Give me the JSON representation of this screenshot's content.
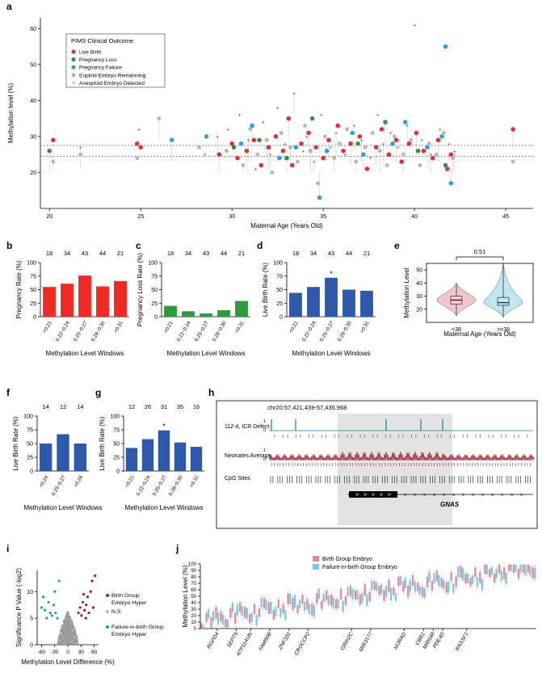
{
  "palette": {
    "red": "#e0303a",
    "green": "#3b8f3b",
    "blue": "#2f9fd8",
    "grey": "#b8b8b8",
    "dark": "#444444",
    "bar_red": "#ee2a24",
    "bar_green": "#2e9a3b",
    "bar_blue": "#2e58a8",
    "violin_red": "#f2c6cc",
    "violin_blue": "#bfe7f2",
    "volcano_red": "#a3143a",
    "volcano_teal": "#1aa0b8",
    "track_teal": "#1b7f90",
    "track_red": "#9a1b2e"
  },
  "chart_data": [
    {
      "panel": "a",
      "type": "scatter",
      "xlabel": "Maternal Age (Years Old)",
      "ylabel": "Methylation level (%)",
      "xlim": [
        19.5,
        46.5
      ],
      "ylim": [
        10,
        63
      ],
      "xticks": [
        20,
        25,
        30,
        35,
        40,
        45
      ],
      "yticks": [
        20,
        30,
        40,
        50,
        60
      ],
      "reference_lines": [
        24.5,
        27.5
      ],
      "legend": {
        "title": "PIMS Clinical Outcome",
        "items": [
          {
            "label": "Live Birth",
            "color": "#e0303a",
            "shape": "circle"
          },
          {
            "label": "Pregnancy Loss",
            "color": "#3b8f3b",
            "shape": "circle"
          },
          {
            "label": "Pregnancy Failure",
            "color": "#2f9fd8",
            "shape": "circle"
          },
          {
            "label": "Euploid Embryo Remainning",
            "color": "#b8b8b8",
            "shape": "circle"
          },
          {
            "label": "Aneuploid Embryo Detected",
            "color": "#b8b8b8",
            "shape": "plus"
          }
        ]
      },
      "series": [
        {
          "name": "Live Birth",
          "color": "#e0303a",
          "points": [
            [
              20.2,
              29
            ],
            [
              24.8,
              28
            ],
            [
              25,
              27
            ],
            [
              29.3,
              25
            ],
            [
              30,
              28
            ],
            [
              30.3,
              24
            ],
            [
              30.8,
              26
            ],
            [
              31.2,
              29
            ],
            [
              31.6,
              22
            ],
            [
              32,
              27
            ],
            [
              32.4,
              30
            ],
            [
              32.8,
              26
            ],
            [
              33.1,
              35
            ],
            [
              33.3,
              22
            ],
            [
              33.8,
              28
            ],
            [
              34.2,
              31
            ],
            [
              34.6,
              27
            ],
            [
              35,
              24
            ],
            [
              35.3,
              29
            ],
            [
              35.8,
              33
            ],
            [
              36.1,
              26
            ],
            [
              36.5,
              28
            ],
            [
              37,
              30
            ],
            [
              37.4,
              21
            ],
            [
              37.9,
              27
            ],
            [
              38.2,
              32
            ],
            [
              38.6,
              25
            ],
            [
              39,
              29
            ],
            [
              39.3,
              23
            ],
            [
              39.7,
              28
            ],
            [
              40.1,
              31
            ],
            [
              40.5,
              26
            ],
            [
              41,
              24
            ],
            [
              41.3,
              29
            ],
            [
              41.8,
              21
            ],
            [
              42,
              25
            ],
            [
              45.4,
              32
            ]
          ]
        },
        {
          "name": "Pregnancy Loss",
          "color": "#3b8f3b",
          "points": [
            [
              20,
              26
            ],
            [
              30.1,
              27
            ],
            [
              31.5,
              29
            ],
            [
              33,
              24
            ],
            [
              34.4,
              35
            ],
            [
              36.9,
              28
            ],
            [
              38.4,
              34
            ],
            [
              40.2,
              26
            ],
            [
              41.7,
              22
            ]
          ]
        },
        {
          "name": "Pregnancy Failure",
          "color": "#2f9fd8",
          "points": [
            [
              26.7,
              29
            ],
            [
              28.6,
              30
            ],
            [
              30.5,
              28
            ],
            [
              31.1,
              33
            ],
            [
              32.6,
              24
            ],
            [
              33.5,
              27
            ],
            [
              34.8,
              13
            ],
            [
              35.2,
              26
            ],
            [
              36.6,
              31
            ],
            [
              37.2,
              25
            ],
            [
              38.8,
              28
            ],
            [
              39.5,
              34
            ],
            [
              40.7,
              27
            ],
            [
              41.5,
              30
            ],
            [
              41.7,
              55
            ],
            [
              42,
              17
            ]
          ]
        },
        {
          "name": "Euploid Embryo Remainning",
          "color": "#b8b8b8",
          "points": [
            [
              20.2,
              23
            ],
            [
              21.7,
              25
            ],
            [
              24.8,
              24
            ],
            [
              26,
              35
            ],
            [
              28.2,
              27
            ],
            [
              29.7,
              26
            ],
            [
              30.6,
              22
            ],
            [
              31,
              32
            ],
            [
              31.4,
              25
            ],
            [
              31.9,
              29
            ],
            [
              32.2,
              20
            ],
            [
              32.7,
              31
            ],
            [
              33.2,
              27
            ],
            [
              33.6,
              23
            ],
            [
              34,
              33
            ],
            [
              34.3,
              26
            ],
            [
              34.7,
              17
            ],
            [
              35.1,
              30
            ],
            [
              35.6,
              24
            ],
            [
              35.9,
              28
            ],
            [
              36.3,
              32
            ],
            [
              36.8,
              23
            ],
            [
              37.3,
              27
            ],
            [
              37.7,
              31
            ],
            [
              38.1,
              26
            ],
            [
              38.5,
              22
            ],
            [
              38.9,
              30
            ],
            [
              39.4,
              25
            ],
            [
              39.8,
              29
            ],
            [
              40.3,
              22
            ],
            [
              40.8,
              28
            ],
            [
              41.2,
              25
            ],
            [
              41.6,
              31
            ],
            [
              42.1,
              24
            ],
            [
              45.4,
              23
            ]
          ]
        },
        {
          "name": "Aneuploid Embryo Detected",
          "color": "#444444",
          "points": [
            [
              21.7,
              27
            ],
            [
              24.9,
              32
            ],
            [
              28.5,
              25
            ],
            [
              29.2,
              30
            ],
            [
              29.8,
              32
            ],
            [
              30.4,
              36
            ],
            [
              30.9,
              29
            ],
            [
              31.3,
              21
            ],
            [
              31.7,
              34
            ],
            [
              32.1,
              25
            ],
            [
              32.5,
              38
            ],
            [
              32.9,
              28
            ],
            [
              33.4,
              42
            ],
            [
              33.9,
              26
            ],
            [
              34.1,
              30
            ],
            [
              34.5,
              23
            ],
            [
              34.9,
              36
            ],
            [
              35.4,
              27
            ],
            [
              35.7,
              31
            ],
            [
              36.2,
              25
            ],
            [
              36.7,
              33
            ],
            [
              37.1,
              29
            ],
            [
              37.6,
              24
            ],
            [
              38,
              36
            ],
            [
              38.3,
              28
            ],
            [
              38.7,
              31
            ],
            [
              39.1,
              27
            ],
            [
              39.6,
              33
            ],
            [
              40,
              61
            ],
            [
              40.4,
              29
            ],
            [
              40.9,
              25
            ],
            [
              41.4,
              32
            ],
            [
              41.9,
              28
            ],
            [
              42.2,
              26
            ]
          ]
        }
      ]
    },
    {
      "panel": "b",
      "type": "bar",
      "color": "#ee2a24",
      "xlabel": "Methylation Level Windows",
      "ylabel": "Pregnancy Rate (%)",
      "categories": [
        "<0.21",
        "0.22~0.24",
        "0.25~0.27",
        "0.28~0.30",
        ">0.31"
      ],
      "values": [
        55,
        61,
        76,
        56,
        66
      ],
      "counts": [
        "18",
        "34",
        "43",
        "44",
        "21"
      ],
      "ylim": [
        0,
        100
      ],
      "yticks": [
        0,
        25,
        50,
        75,
        100
      ],
      "annotations": []
    },
    {
      "panel": "c",
      "type": "bar",
      "color": "#2e9a3b",
      "xlabel": "Methylation Level Windows",
      "ylabel": "Pregnancy Loss Rate (%)",
      "categories": [
        "<0.21",
        "0.22~0.24",
        "0.25~0.27",
        "0.28~0.30",
        ">0.31"
      ],
      "values": [
        20,
        10,
        6,
        12,
        29
      ],
      "counts": [
        "18",
        "34",
        "43",
        "44",
        "21"
      ],
      "ylim": [
        0,
        100
      ],
      "yticks": [
        0,
        25,
        50,
        75,
        100
      ],
      "annotations": []
    },
    {
      "panel": "d",
      "type": "bar",
      "color": "#2e58a8",
      "xlabel": "Methylation Level Windows",
      "ylabel": "Live Birth Rate (%)",
      "categories": [
        "<0.21",
        "0.22~0.24",
        "0.25~0.27",
        "0.28~0.30",
        ">0.31"
      ],
      "values": [
        44,
        55,
        72,
        50,
        48
      ],
      "counts": [
        "18",
        "34",
        "43",
        "44",
        "21"
      ],
      "ylim": [
        0,
        100
      ],
      "yticks": [
        0,
        25,
        50,
        75,
        100
      ],
      "annotations": [
        "",
        "",
        "*",
        "",
        ""
      ]
    },
    {
      "panel": "e",
      "type": "violin",
      "xlabel": "Maternal Age (Years Old)",
      "ylabel": "Methylation Level",
      "categories": [
        "<38",
        ">=38"
      ],
      "ylim": [
        10,
        55
      ],
      "yticks": [
        20,
        30,
        40,
        50
      ],
      "pvalue": "0.51",
      "boxes": [
        {
          "q1": 24,
          "median": 27,
          "q3": 30,
          "min": 15,
          "max": 40,
          "color": "#f2c6cc"
        },
        {
          "q1": 23,
          "median": 25,
          "q3": 29,
          "min": 14,
          "max": 55,
          "color": "#bfe7f2"
        }
      ]
    },
    {
      "panel": "f",
      "type": "bar",
      "color": "#2e58a8",
      "xlabel": "Methylation Level Windows",
      "ylabel": "Live Birth Rate (%)",
      "categories": [
        "<0.24",
        "0.25~0.27",
        ">0.28"
      ],
      "values": [
        50,
        67,
        50
      ],
      "counts": [
        "14",
        "12",
        "14"
      ],
      "ylim": [
        0,
        100
      ],
      "yticks": [
        0,
        25,
        50,
        75,
        100
      ],
      "annotations": []
    },
    {
      "panel": "g",
      "type": "bar",
      "color": "#2e58a8",
      "xlabel": "Methylation Level Windows",
      "ylabel": "Live Birth Rate (%)",
      "categories": [
        "<0.21",
        "0.22~0.24",
        "0.25~0.27",
        "0.28~0.30",
        ">0.31"
      ],
      "values": [
        42,
        58,
        74,
        52,
        44
      ],
      "counts": [
        "12",
        "26",
        "31",
        "35",
        "16"
      ],
      "ylim": [
        0,
        100
      ],
      "yticks": [
        0,
        25,
        50,
        75,
        100
      ],
      "annotations": [
        "",
        "",
        "*",
        "",
        ""
      ]
    },
    {
      "panel": "h",
      "type": "genome-track",
      "region": "chr20:57,421,439-57,435,968",
      "tracks": [
        "112-4, ICR Defect",
        "Neonates Average",
        "CpG Sites"
      ],
      "scale": [
        "1",
        "0",
        "1",
        "0"
      ],
      "gene": "GNAS"
    },
    {
      "panel": "i",
      "type": "scatter",
      "xlabel": "Methylation Level Difference (%)",
      "ylabel": "Significance P Value (-log2)",
      "xlim": [
        -70,
        70
      ],
      "ylim": [
        0,
        14
      ],
      "xticks": [
        -60,
        -30,
        0,
        30,
        60
      ],
      "yticks": [
        0,
        5,
        10
      ],
      "legend": [
        {
          "label": "Birth Group Embryo Hyper",
          "color": "#a3143a"
        },
        {
          "label": "N.S.",
          "color": "#b8b8b8"
        },
        {
          "label": "Failure-in-birth Group Embryo Hyper",
          "color": "#1aa0b8"
        }
      ],
      "series": [
        {
          "name": "Birth Group Embryo Hyper",
          "color": "#a3143a",
          "points": [
            [
              24,
              6
            ],
            [
              28,
              7
            ],
            [
              31,
              5.5
            ],
            [
              34,
              8
            ],
            [
              38,
              6.5
            ],
            [
              42,
              7.5
            ],
            [
              45,
              9
            ],
            [
              48,
              6
            ],
            [
              52,
              10
            ],
            [
              55,
              12
            ],
            [
              58,
              7
            ],
            [
              62,
              13
            ],
            [
              41,
              5
            ],
            [
              36,
              9.5
            ]
          ]
        },
        {
          "name": "Failure-in-birth Group Embryo Hyper",
          "color": "#1aa0b8",
          "points": [
            [
              -24,
              5
            ],
            [
              -28,
              6
            ],
            [
              -32,
              7.5
            ],
            [
              -36,
              5.5
            ],
            [
              -40,
              6
            ],
            [
              -44,
              8
            ],
            [
              -48,
              5
            ],
            [
              -52,
              6.5
            ],
            [
              -56,
              9
            ],
            [
              -30,
              10
            ],
            [
              -20,
              12
            ],
            [
              -60,
              7
            ]
          ]
        }
      ]
    },
    {
      "panel": "j",
      "type": "box",
      "ylabel": "Methylation Level (%)",
      "ylim": [
        0,
        100
      ],
      "yticks": [
        0,
        10,
        20,
        30,
        40,
        50,
        60,
        70,
        80,
        90,
        100
      ],
      "legend": [
        {
          "label": "Birth Group Embryo",
          "color": "#e38a9c"
        },
        {
          "label": "Failure-in-birth Group Embryo",
          "color": "#7fc9dd"
        }
      ],
      "labelled_genes": [
        "RGPD4",
        "SEPT9",
        "ATP11AUN",
        "FAM50B",
        "ZNF331",
        "CROCCP2",
        "GRIN2C",
        "MIR3177",
        "NORAD",
        "CBR1",
        "MIR548",
        "PDE4D",
        "RASSF1"
      ],
      "gene_count": 70
    }
  ]
}
